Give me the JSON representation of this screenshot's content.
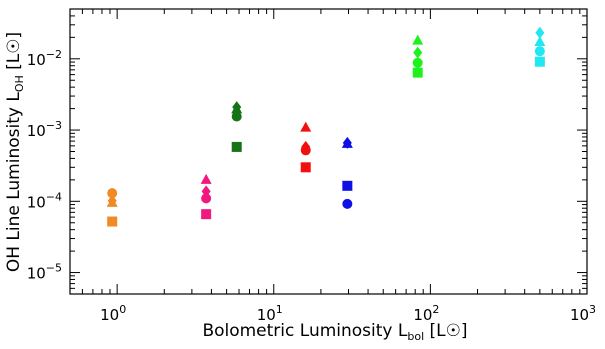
{
  "chart_data": {
    "type": "scatter",
    "x_scale": "log",
    "y_scale": "log",
    "xlim": [
      0.5,
      1000
    ],
    "ylim": [
      5e-06,
      0.05
    ],
    "xlabel": {
      "main": "Bolometric Luminosity L",
      "sub": "bol",
      "unit": "[L",
      "sun_symbol": "☉",
      "close": "]"
    },
    "ylabel": {
      "main": "OH Line Luminosity L",
      "sub": "OH",
      "unit": "[L",
      "sun_symbol": "☉",
      "close": "]"
    },
    "x_ticks": [
      {
        "value": 1,
        "base": "10",
        "exp": "0"
      },
      {
        "value": 10,
        "base": "10",
        "exp": "1"
      },
      {
        "value": 100,
        "base": "10",
        "exp": "2"
      },
      {
        "value": 1000,
        "base": "10",
        "exp": "3"
      }
    ],
    "y_ticks": [
      {
        "value": 1e-05,
        "base": "10",
        "exp": "−5"
      },
      {
        "value": 0.0001,
        "base": "10",
        "exp": "−4"
      },
      {
        "value": 0.001,
        "base": "10",
        "exp": "−3"
      },
      {
        "value": 0.01,
        "base": "10",
        "exp": "−2"
      }
    ],
    "grid": false,
    "sources": [
      {
        "color": "#f08a24",
        "x": 0.93,
        "points": [
          {
            "marker": "circle",
            "y": 0.00013
          },
          {
            "marker": "diamond",
            "y": 0.000102
          },
          {
            "marker": "triangle",
            "y": 9.5e-05
          },
          {
            "marker": "square",
            "y": 5.2e-05
          }
        ]
      },
      {
        "color": "#f0197f",
        "x": 3.7,
        "points": [
          {
            "marker": "triangle",
            "y": 0.0002
          },
          {
            "marker": "diamond",
            "y": 0.000138
          },
          {
            "marker": "circle",
            "y": 0.00011
          },
          {
            "marker": "square",
            "y": 6.6e-05
          }
        ]
      },
      {
        "color": "#167216",
        "x": 5.8,
        "points": [
          {
            "marker": "diamond",
            "y": 0.0021
          },
          {
            "marker": "triangle",
            "y": 0.00195
          },
          {
            "marker": "circle",
            "y": 0.00155
          },
          {
            "marker": "square",
            "y": 0.00058
          }
        ]
      },
      {
        "color": "#f20f0f",
        "x": 16,
        "points": [
          {
            "marker": "triangle",
            "y": 0.00108
          },
          {
            "marker": "diamond",
            "y": 0.00058
          },
          {
            "marker": "circle",
            "y": 0.00052
          },
          {
            "marker": "square",
            "y": 0.0003
          }
        ]
      },
      {
        "color": "#0f0fe6",
        "x": 29.5,
        "points": [
          {
            "marker": "diamond",
            "y": 0.00066
          },
          {
            "marker": "triangle",
            "y": 0.00064
          },
          {
            "marker": "square",
            "y": 0.000165
          },
          {
            "marker": "circle",
            "y": 9.2e-05
          }
        ]
      },
      {
        "color": "#1ef21e",
        "x": 83,
        "points": [
          {
            "marker": "triangle",
            "y": 0.018
          },
          {
            "marker": "diamond",
            "y": 0.0122
          },
          {
            "marker": "circle",
            "y": 0.0088
          },
          {
            "marker": "square",
            "y": 0.0064
          }
        ]
      },
      {
        "color": "#1fe8f2",
        "x": 500,
        "points": [
          {
            "marker": "diamond",
            "y": 0.0232
          },
          {
            "marker": "triangle",
            "y": 0.0172
          },
          {
            "marker": "circle",
            "y": 0.0128
          },
          {
            "marker": "square",
            "y": 0.0091
          }
        ]
      }
    ]
  }
}
